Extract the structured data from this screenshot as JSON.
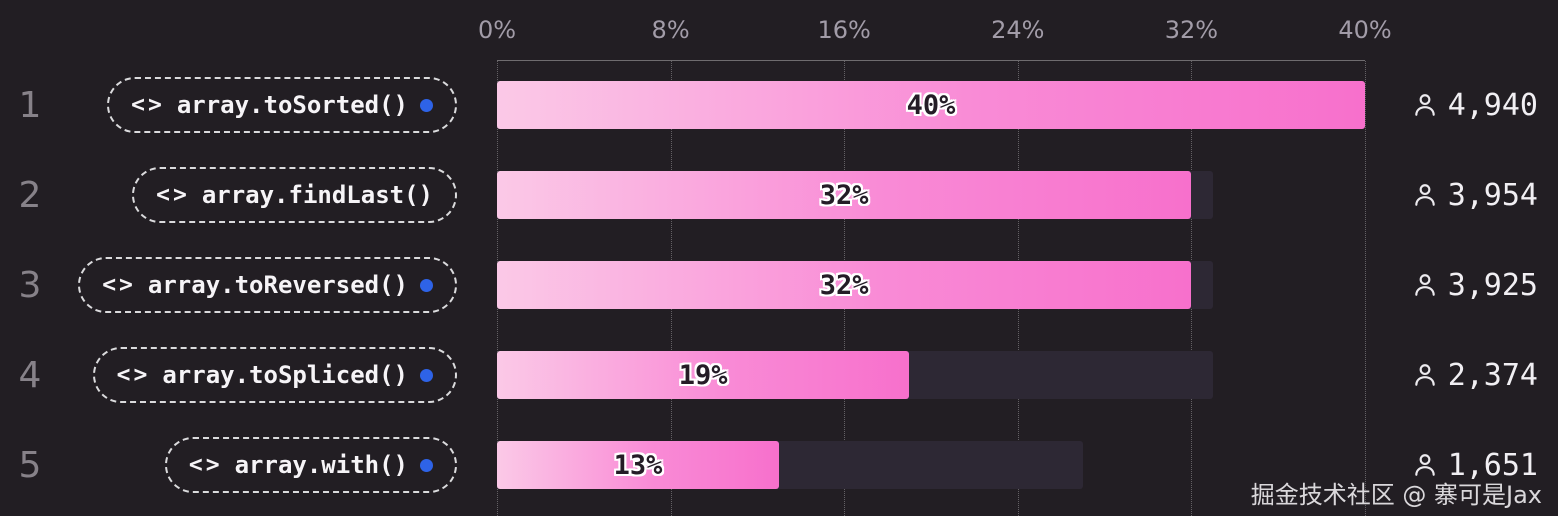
{
  "chart_data": {
    "type": "bar",
    "orientation": "horizontal",
    "title": "",
    "x_axis": {
      "ticks": [
        "0%",
        "8%",
        "16%",
        "24%",
        "32%",
        "40%"
      ],
      "max": 40
    },
    "grid": "dotted-vertical",
    "items": [
      {
        "rank": "1",
        "code_icon": "<>",
        "label": "array.toSorted()",
        "has_blue_dot": true,
        "value": 40,
        "value_label": "40%",
        "track_value": 40,
        "count": "4,940"
      },
      {
        "rank": "2",
        "code_icon": "<>",
        "label": "array.findLast()",
        "has_blue_dot": false,
        "value": 32,
        "value_label": "32%",
        "track_value": 33,
        "count": "3,954"
      },
      {
        "rank": "3",
        "code_icon": "<>",
        "label": "array.toReversed()",
        "has_blue_dot": true,
        "value": 32,
        "value_label": "32%",
        "track_value": 33,
        "count": "3,925"
      },
      {
        "rank": "4",
        "code_icon": "<>",
        "label": "array.toSpliced()",
        "has_blue_dot": true,
        "value": 19,
        "value_label": "19%",
        "track_value": 33,
        "count": "2,374"
      },
      {
        "rank": "5",
        "code_icon": "<>",
        "label": "array.with()",
        "has_blue_dot": true,
        "value": 13,
        "value_label": "13%",
        "track_value": 27,
        "count": "1,651"
      }
    ]
  },
  "icons": {
    "code": "code-icon (<>)",
    "person": "person-outline-icon",
    "blue_dot": "blue-dot"
  },
  "colors": {
    "background": "#221e23",
    "track": "#2d2834",
    "bar_gradient_start": "#fbc9e7",
    "bar_gradient_end": "#f770cc",
    "blue_dot": "#2e63e7",
    "tick_text": "#a29ca8",
    "rank_text": "#878289",
    "count_text": "#f1eff3"
  },
  "watermark": "掘金技术社区 @ 寨可是Jax"
}
